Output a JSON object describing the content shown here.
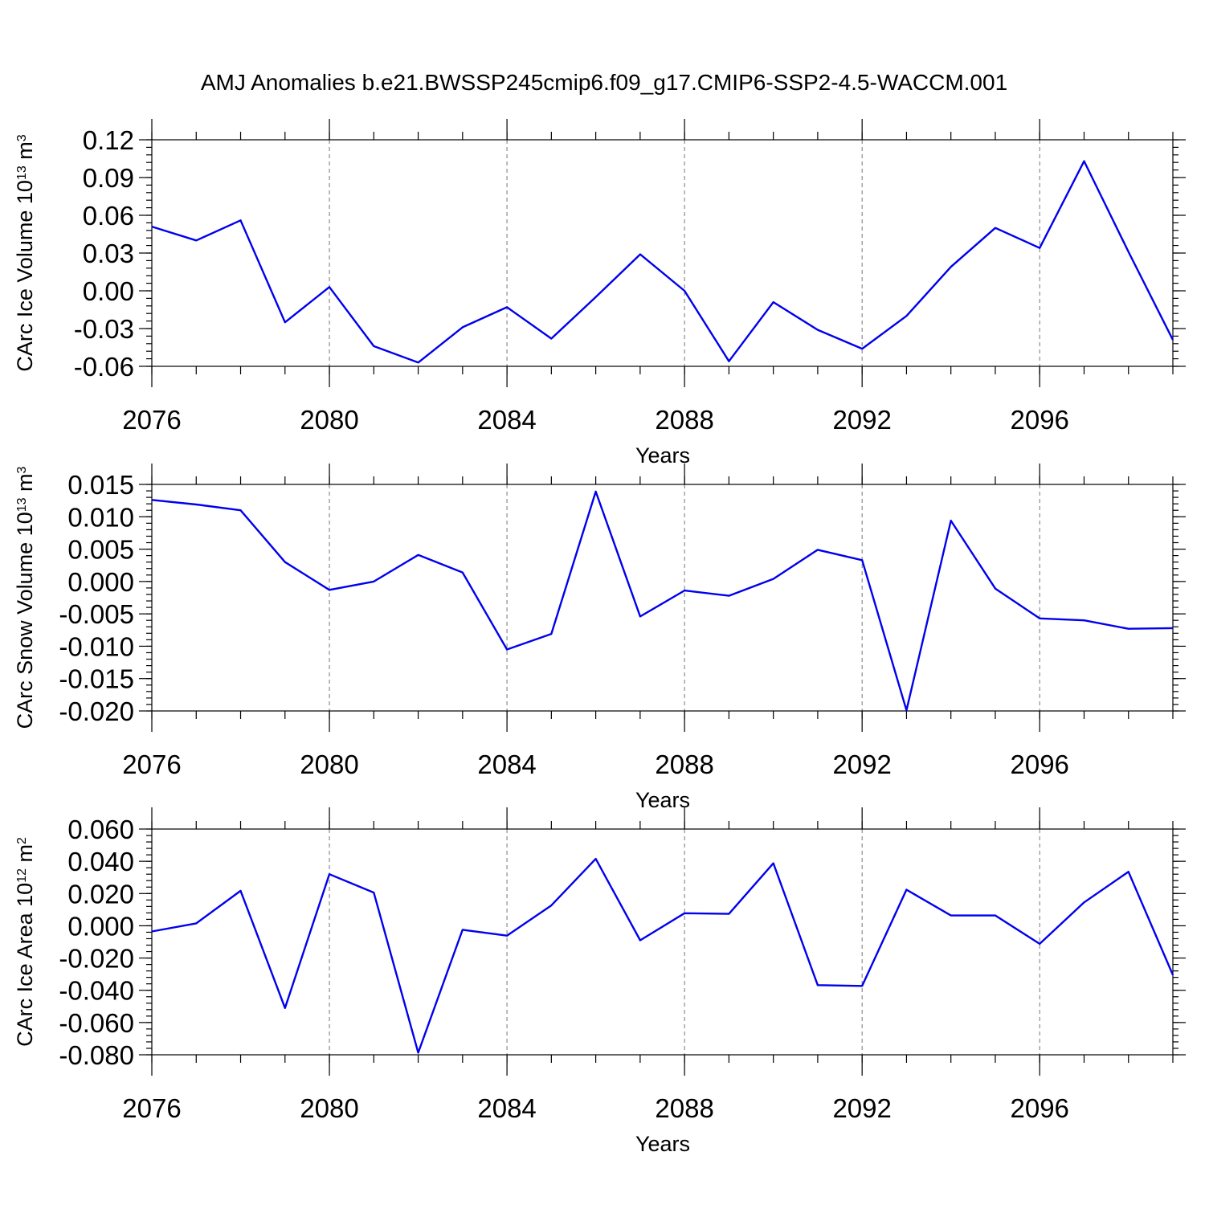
{
  "title": "AMJ Anomalies b.e21.BWSSP245cmip6.f09_g17.CMIP6-SSP2-4.5-WACCM.001",
  "colors": {
    "line": "#0000ee",
    "grid": "#777777",
    "axis": "#000000"
  },
  "chart_data": [
    {
      "type": "line",
      "ylabel_main": "CArc Ice Volume 10",
      "ylabel_exp": "13",
      "ylabel_unit": " m",
      "ylabel_unit_exp": "3",
      "xlabel": "Years",
      "xlim": [
        2076,
        2099
      ],
      "ylim": [
        -0.06,
        0.12
      ],
      "y_ticks": [
        -0.06,
        -0.03,
        0.0,
        0.03,
        0.06,
        0.09,
        0.12
      ],
      "y_tick_labels": [
        "-0.06",
        "-0.03",
        "0.00",
        "0.03",
        "0.06",
        "0.09",
        "0.12"
      ],
      "y_minor_step": 0.006,
      "x_ticks": [
        2076,
        2080,
        2084,
        2088,
        2092,
        2096
      ],
      "x_tick_labels": [
        "2076",
        "2080",
        "2084",
        "2088",
        "2092",
        "2096"
      ],
      "grid_x": [
        2080,
        2084,
        2088,
        2092,
        2096
      ],
      "series": [
        {
          "x": [
            2076,
            2077,
            2078,
            2079,
            2080,
            2081,
            2082,
            2083,
            2084,
            2085,
            2086,
            2087,
            2088,
            2089,
            2090,
            2091,
            2092,
            2093,
            2094,
            2095,
            2096,
            2097,
            2098,
            2099
          ],
          "values": [
            0.051,
            0.04,
            0.056,
            -0.025,
            0.003,
            -0.044,
            -0.057,
            -0.029,
            -0.013,
            -0.038,
            -0.005,
            0.029,
            0.0,
            -0.056,
            -0.009,
            -0.031,
            -0.046,
            -0.02,
            0.019,
            0.05,
            0.034,
            0.103,
            0.031,
            -0.039
          ]
        }
      ]
    },
    {
      "type": "line",
      "ylabel_main": "CArc Snow Volume 10",
      "ylabel_exp": "13",
      "ylabel_unit": " m",
      "ylabel_unit_exp": "3",
      "xlabel": "Years",
      "xlim": [
        2076,
        2099
      ],
      "ylim": [
        -0.02,
        0.015
      ],
      "y_ticks": [
        -0.02,
        -0.015,
        -0.01,
        -0.005,
        0.0,
        0.005,
        0.01,
        0.015
      ],
      "y_tick_labels": [
        "-0.020",
        "-0.015",
        "-0.010",
        "-0.005",
        "0.000",
        "0.005",
        "0.010",
        "0.015"
      ],
      "y_minor_step": 0.001,
      "x_ticks": [
        2076,
        2080,
        2084,
        2088,
        2092,
        2096
      ],
      "x_tick_labels": [
        "2076",
        "2080",
        "2084",
        "2088",
        "2092",
        "2096"
      ],
      "grid_x": [
        2080,
        2084,
        2088,
        2092,
        2096
      ],
      "series": [
        {
          "x": [
            2076,
            2077,
            2078,
            2079,
            2080,
            2081,
            2082,
            2083,
            2084,
            2085,
            2086,
            2087,
            2088,
            2089,
            2090,
            2091,
            2092,
            2093,
            2094,
            2095,
            2096,
            2097,
            2098,
            2099
          ],
          "values": [
            0.0126,
            0.0119,
            0.011,
            0.003,
            -0.0013,
            0.0,
            0.0041,
            0.0014,
            -0.0105,
            -0.0081,
            0.0139,
            -0.0054,
            -0.0014,
            -0.0022,
            0.0004,
            0.0049,
            0.0033,
            -0.0199,
            0.0094,
            -0.0011,
            -0.0057,
            -0.006,
            -0.0073,
            -0.0072
          ]
        }
      ]
    },
    {
      "type": "line",
      "ylabel_main": "CArc Ice Area 10",
      "ylabel_exp": "12",
      "ylabel_unit": " m",
      "ylabel_unit_exp": "2",
      "xlabel": "Years",
      "xlim": [
        2076,
        2099
      ],
      "ylim": [
        -0.08,
        0.06
      ],
      "y_ticks": [
        -0.08,
        -0.06,
        -0.04,
        -0.02,
        0.0,
        0.02,
        0.04,
        0.06
      ],
      "y_tick_labels": [
        "-0.080",
        "-0.060",
        "-0.040",
        "-0.020",
        "0.000",
        "0.020",
        "0.040",
        "0.060"
      ],
      "y_minor_step": 0.004,
      "x_ticks": [
        2076,
        2080,
        2084,
        2088,
        2092,
        2096
      ],
      "x_tick_labels": [
        "2076",
        "2080",
        "2084",
        "2088",
        "2092",
        "2096"
      ],
      "grid_x": [
        2080,
        2084,
        2088,
        2092,
        2096
      ],
      "series": [
        {
          "x": [
            2076,
            2077,
            2078,
            2079,
            2080,
            2081,
            2082,
            2083,
            2084,
            2085,
            2086,
            2087,
            2088,
            2089,
            2090,
            2091,
            2092,
            2093,
            2094,
            2095,
            2096,
            2097,
            2098,
            2099
          ],
          "values": [
            -0.0035,
            0.0015,
            0.0217,
            -0.051,
            0.032,
            0.0206,
            -0.0787,
            -0.0025,
            -0.0061,
            0.0126,
            0.0415,
            -0.009,
            0.0078,
            0.0074,
            0.0388,
            -0.0368,
            -0.0373,
            0.0224,
            0.0064,
            0.0064,
            -0.0112,
            0.0145,
            0.0335,
            -0.0305
          ]
        }
      ]
    }
  ]
}
